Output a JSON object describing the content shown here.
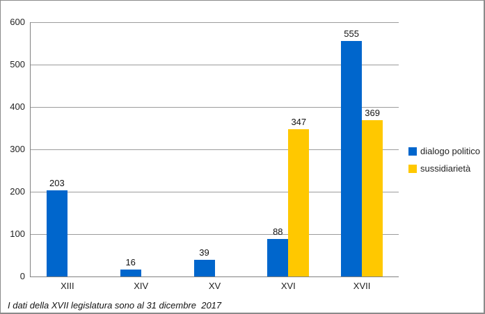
{
  "chart_data": {
    "type": "bar",
    "title": "",
    "categories": [
      "XIII",
      "XIV",
      "XV",
      "XVI",
      "XVII"
    ],
    "series": [
      {
        "name": "dialogo politico",
        "color": "#0066CC",
        "values": [
          203,
          16,
          39,
          88,
          555
        ]
      },
      {
        "name": "sussidiarietà",
        "color": "#FFC800",
        "values": [
          null,
          null,
          null,
          347,
          369
        ]
      }
    ],
    "ylim": [
      0,
      600
    ],
    "ytick_step": 100,
    "yticks": [
      0,
      100,
      200,
      300,
      400,
      500,
      600
    ],
    "grid": true,
    "legend_position": "right",
    "bar_labels_shown": true,
    "xlabel": "",
    "ylabel": ""
  },
  "footnote": "I dati della XVII legislatura sono al 31 dicembre  2017",
  "colors": {
    "axis": "#808080",
    "gridline": "#9B9B9B",
    "text": "#1F1F1F",
    "frame_border": "#8A8A8A",
    "background": "#FFFFFF"
  }
}
